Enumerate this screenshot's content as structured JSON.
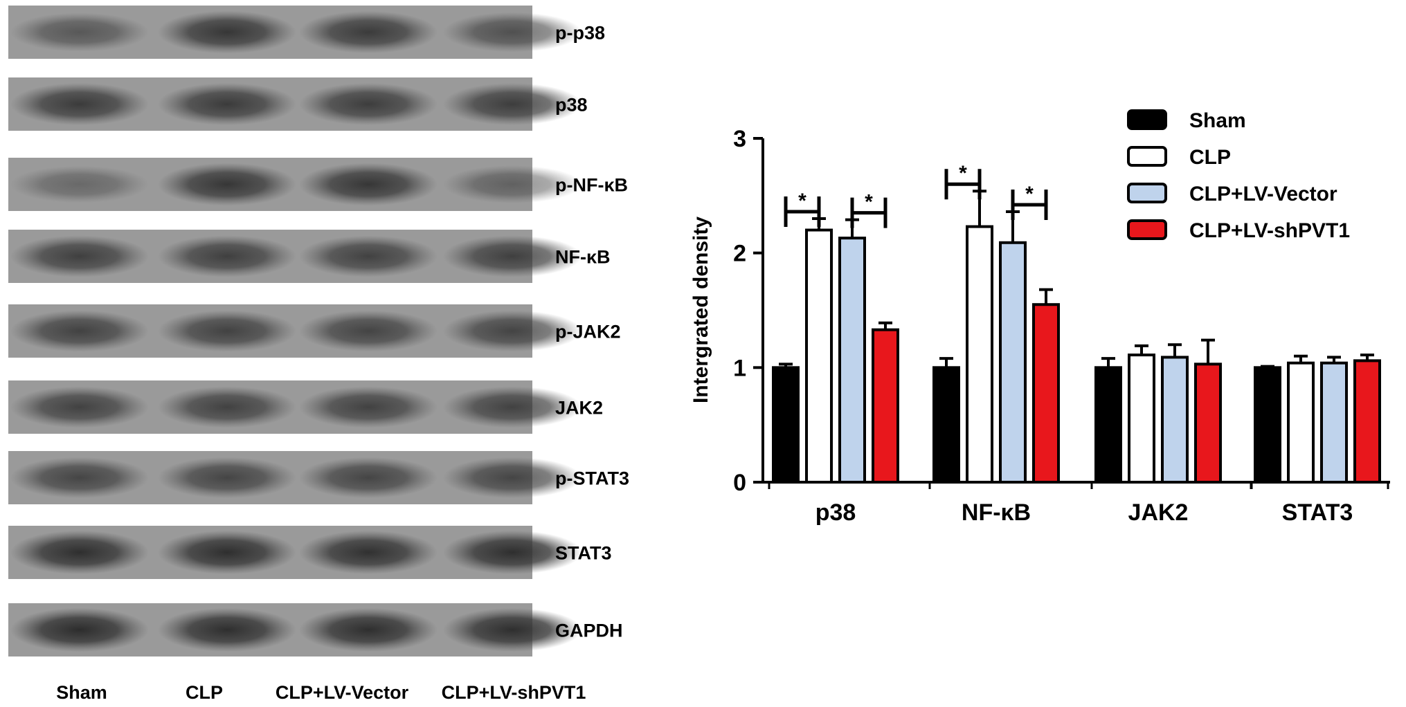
{
  "blot": {
    "rows": [
      {
        "label": "p-p38",
        "intensities": [
          0.45,
          0.85,
          0.8,
          0.55
        ]
      },
      {
        "label": "p38",
        "intensities": [
          0.8,
          0.8,
          0.78,
          0.78
        ]
      },
      {
        "label": "p-NF-κB",
        "intensities": [
          0.25,
          0.85,
          0.85,
          0.35
        ]
      },
      {
        "label": "NF-κB",
        "intensities": [
          0.75,
          0.75,
          0.72,
          0.75
        ]
      },
      {
        "label": "p-JAK2",
        "intensities": [
          0.72,
          0.72,
          0.7,
          0.7
        ]
      },
      {
        "label": "JAK2",
        "intensities": [
          0.72,
          0.72,
          0.72,
          0.72
        ]
      },
      {
        "label": "p-STAT3",
        "intensities": [
          0.68,
          0.68,
          0.68,
          0.68
        ]
      },
      {
        "label": "STAT3",
        "intensities": [
          0.95,
          0.95,
          0.92,
          0.95
        ]
      },
      {
        "label": "GAPDH",
        "intensities": [
          0.98,
          0.95,
          0.95,
          0.95
        ]
      }
    ],
    "lanes": [
      "Sham",
      "CLP",
      "CLP+LV-Vector",
      "CLP+LV-shPVT1"
    ]
  },
  "chart_data": {
    "type": "bar",
    "title": "",
    "xlabel": "",
    "ylabel": "Intergrated density",
    "ylim": [
      0,
      3
    ],
    "yticks": [
      0,
      1,
      2,
      3
    ],
    "categories": [
      "p38",
      "NF-κB",
      "JAK2",
      "STAT3"
    ],
    "series": [
      {
        "name": "Sham",
        "color": "#000000",
        "values": [
          1.0,
          1.0,
          1.0,
          1.0
        ],
        "errors": [
          0.03,
          0.08,
          0.08,
          0.01
        ]
      },
      {
        "name": "CLP",
        "color": "#ffffff",
        "values": [
          2.2,
          2.23,
          1.11,
          1.04
        ],
        "errors": [
          0.1,
          0.31,
          0.08,
          0.06
        ]
      },
      {
        "name": "CLP+LV-Vector",
        "color": "#bfd3ec",
        "values": [
          2.13,
          2.09,
          1.09,
          1.04
        ],
        "errors": [
          0.16,
          0.27,
          0.11,
          0.05
        ]
      },
      {
        "name": "CLP+LV-shPVT1",
        "color": "#e8171c",
        "values": [
          1.33,
          1.55,
          1.03,
          1.06
        ],
        "errors": [
          0.06,
          0.13,
          0.21,
          0.05
        ]
      }
    ],
    "significance": [
      {
        "category": "p38",
        "between": [
          "Sham",
          "CLP"
        ],
        "label": "*"
      },
      {
        "category": "p38",
        "between": [
          "CLP+LV-Vector",
          "CLP+LV-shPVT1"
        ],
        "label": "*"
      },
      {
        "category": "NF-κB",
        "between": [
          "Sham",
          "CLP"
        ],
        "label": "*"
      },
      {
        "category": "NF-κB",
        "between": [
          "CLP+LV-Vector",
          "CLP+LV-shPVT1"
        ],
        "label": "*"
      }
    ],
    "legend_position": "top-right"
  }
}
